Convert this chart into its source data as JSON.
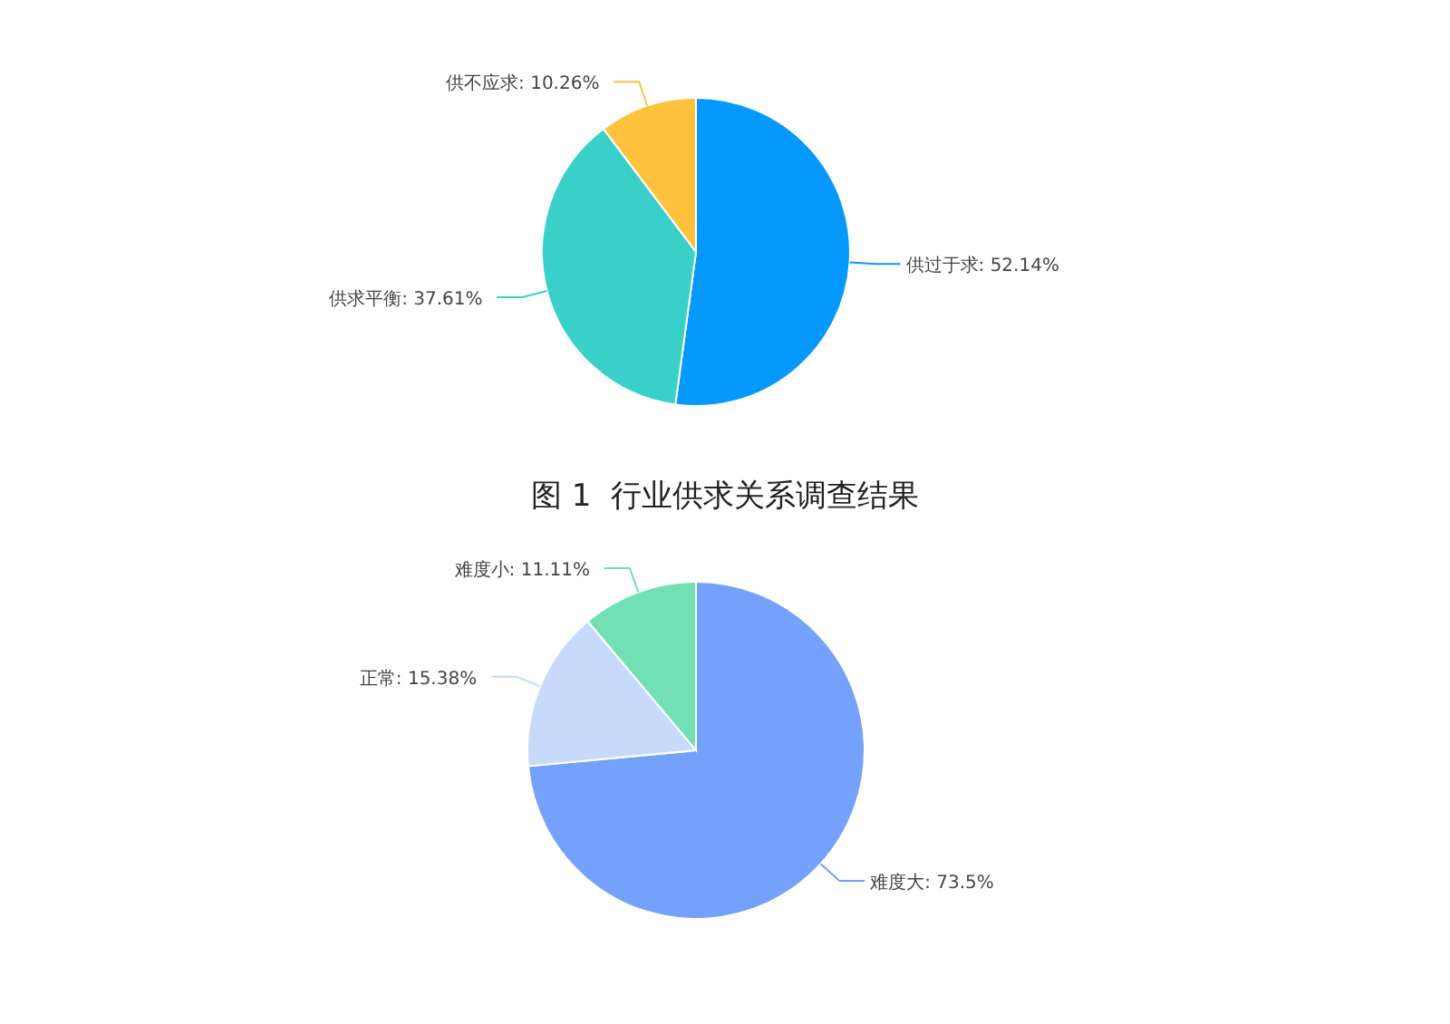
{
  "chart_data": [
    {
      "type": "pie",
      "categories": [
        "供过于求",
        "供求平衡",
        "供不应求"
      ],
      "values": [
        52.14,
        37.61,
        10.26
      ],
      "colors": [
        "#0599fe",
        "#39d0c9",
        "#fec23d"
      ],
      "value_labels": [
        ": 52.14%",
        ": 37.61%",
        ": 10.26%"
      ],
      "annotations": [
        "图 1  行业供求关系调查结果"
      ]
    },
    {
      "type": "pie",
      "categories": [
        "难度大",
        "正常",
        "难度小"
      ],
      "values": [
        73.5,
        15.38,
        11.11
      ],
      "colors": [
        "#73a1fb",
        "#c8dafc",
        "#73dfb5"
      ],
      "value_labels": [
        ": 73.5%",
        ": 15.38%",
        ": 11.11%"
      ]
    }
  ]
}
